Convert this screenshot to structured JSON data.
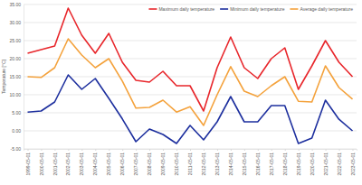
{
  "chart_data": {
    "type": "line",
    "y_label": "Temperature [°C]",
    "categories": [
      "1999-05-01",
      "2000-05-01",
      "2001-05-01",
      "2002-05-01",
      "2003-05-01",
      "2004-05-01",
      "2005-05-01",
      "2006-05-01",
      "2007-05-01",
      "2008-05-01",
      "2009-05-01",
      "2010-05-01",
      "2011-05-01",
      "2012-05-01",
      "2013-05-01",
      "2014-05-01",
      "2015-05-01",
      "2016-05-01",
      "2017-05-01",
      "2018-05-01",
      "2019-05-01",
      "2020-05-01",
      "2021-05-01",
      "2022-05-01",
      "2023-05-01"
    ],
    "series": [
      {
        "name": "Maximum daily temperature",
        "color": "#e8262b",
        "values": [
          21.5,
          22.5,
          23.5,
          34.0,
          26.5,
          21.5,
          27.0,
          19.0,
          14.0,
          13.5,
          16.5,
          12.5,
          12.5,
          5.5,
          17.5,
          26.0,
          17.5,
          14.5,
          20.0,
          23.0,
          11.5,
          18.0,
          25.0,
          19.0,
          15.0
        ]
      },
      {
        "name": "Minimum daily temperature",
        "color": "#1d2f9e",
        "values": [
          5.2,
          5.5,
          8.0,
          15.5,
          11.5,
          14.5,
          9.0,
          3.3,
          -3.0,
          0.5,
          -1.0,
          -3.5,
          1.5,
          -2.5,
          2.5,
          9.5,
          2.5,
          2.5,
          7.0,
          7.0,
          -3.5,
          -2.0,
          8.5,
          3.2,
          0.0
        ]
      },
      {
        "name": "Average daily temperature",
        "color": "#f4a23c",
        "values": [
          15.0,
          14.8,
          17.5,
          25.5,
          21.0,
          17.5,
          20.0,
          13.8,
          6.3,
          6.5,
          8.5,
          5.2,
          6.7,
          1.5,
          10.0,
          17.8,
          11.0,
          9.5,
          12.5,
          15.0,
          8.2,
          8.0,
          18.0,
          12.0,
          8.8
        ]
      }
    ],
    "ylim": [
      -5,
      35
    ],
    "yticks": [
      {
        "value": -5,
        "label": "-5.00"
      },
      {
        "value": 0,
        "label": "0.00"
      },
      {
        "value": 5,
        "label": "5.00"
      },
      {
        "value": 10,
        "label": "10.00"
      },
      {
        "value": 15,
        "label": "15.00"
      },
      {
        "value": 20,
        "label": "20.00"
      },
      {
        "value": 25,
        "label": "25.00"
      },
      {
        "value": 30,
        "label": "30.00"
      },
      {
        "value": 35,
        "label": "35.00"
      }
    ],
    "grid": true,
    "legend": "upper right"
  }
}
